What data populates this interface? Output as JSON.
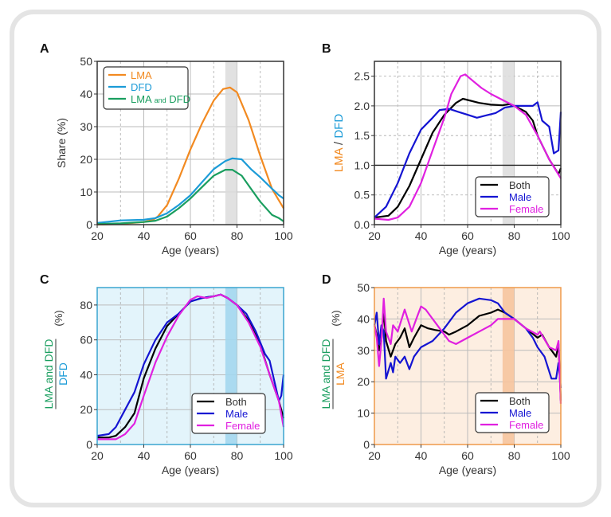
{
  "colors": {
    "lma": "#f28a21",
    "dfd": "#1b9bd7",
    "lma_and_dfd": "#1a9e5f",
    "both": "#000000",
    "male": "#1414d2",
    "female": "#e020e0"
  },
  "chart_data": [
    {
      "panel": "A",
      "type": "line",
      "xlabel": "Age (years)",
      "ylabel": "Share (%)",
      "xlim": [
        20,
        100
      ],
      "ylim": [
        0,
        50
      ],
      "xticks": [
        20,
        40,
        60,
        80,
        100
      ],
      "yticks": [
        0,
        10,
        20,
        30,
        40,
        50
      ],
      "highlight_band": [
        75,
        80
      ],
      "grid": true,
      "legend": "top-left",
      "series": [
        {
          "name": "LMA",
          "color": "#f28a21",
          "x": [
            20,
            30,
            40,
            44,
            46,
            50,
            55,
            60,
            65,
            70,
            74,
            77,
            80,
            85,
            90,
            95,
            100
          ],
          "y": [
            0,
            0.2,
            0.8,
            1.5,
            2.5,
            6,
            14,
            23,
            31,
            38,
            41.5,
            42,
            40.5,
            32,
            21,
            11,
            5
          ]
        },
        {
          "name": "DFD",
          "color": "#1b9bd7",
          "x": [
            20,
            30,
            40,
            45,
            50,
            55,
            60,
            65,
            70,
            75,
            78,
            82,
            86,
            90,
            95,
            98,
            100
          ],
          "y": [
            0.5,
            1.3,
            1.5,
            2,
            3.5,
            6,
            9,
            13,
            17,
            19.5,
            20.3,
            20,
            17,
            14.5,
            11,
            9,
            8
          ]
        },
        {
          "name": "LMA and DFD",
          "color": "#1a9e5f",
          "x": [
            20,
            30,
            40,
            45,
            50,
            55,
            60,
            65,
            70,
            75,
            78,
            82,
            86,
            90,
            95,
            98,
            100
          ],
          "y": [
            0.2,
            0.4,
            0.8,
            1.2,
            2.5,
            5,
            8,
            11.5,
            15,
            16.8,
            16.8,
            15,
            11,
            7,
            3,
            2,
            1
          ]
        }
      ]
    },
    {
      "panel": "B",
      "type": "line",
      "xlabel": "Age (years)",
      "ylabel_parts": [
        "LMA",
        " / ",
        "DFD"
      ],
      "xlim": [
        20,
        100
      ],
      "ylim": [
        0,
        2.75
      ],
      "xticks": [
        20,
        40,
        60,
        80,
        100
      ],
      "yticks": [
        0.0,
        0.5,
        1.0,
        1.5,
        2.0,
        2.5
      ],
      "reference_line": 1.0,
      "highlight_band": [
        75,
        80
      ],
      "grid": true,
      "legend": "bottom-right",
      "series": [
        {
          "name": "Both",
          "color": "#000000",
          "x": [
            20,
            26,
            30,
            35,
            40,
            45,
            50,
            55,
            58,
            60,
            65,
            70,
            75,
            78,
            80,
            85,
            88,
            90,
            95,
            99,
            100
          ],
          "y": [
            0.12,
            0.15,
            0.3,
            0.65,
            1.1,
            1.55,
            1.85,
            2.05,
            2.12,
            2.1,
            2.05,
            2.02,
            2.01,
            2.03,
            2.0,
            1.9,
            1.75,
            1.5,
            1.1,
            0.85,
            0.95
          ]
        },
        {
          "name": "Male",
          "color": "#1414d2",
          "x": [
            20,
            25,
            30,
            35,
            40,
            45,
            48,
            52,
            56,
            60,
            64,
            68,
            72,
            76,
            80,
            85,
            88,
            90,
            92,
            95,
            97,
            99,
            100
          ],
          "y": [
            0.12,
            0.3,
            0.7,
            1.2,
            1.6,
            1.8,
            1.93,
            1.95,
            1.9,
            1.85,
            1.8,
            1.84,
            1.88,
            1.97,
            2.0,
            2.0,
            2.0,
            2.06,
            1.75,
            1.65,
            1.2,
            1.25,
            1.9
          ]
        },
        {
          "name": "Female",
          "color": "#e020e0",
          "x": [
            20,
            26,
            30,
            35,
            40,
            45,
            50,
            53,
            57,
            59,
            62,
            66,
            70,
            75,
            80,
            85,
            90,
            95,
            100
          ],
          "y": [
            0.1,
            0.08,
            0.12,
            0.3,
            0.7,
            1.25,
            1.8,
            2.2,
            2.5,
            2.53,
            2.43,
            2.3,
            2.2,
            2.1,
            2.0,
            1.85,
            1.5,
            1.1,
            0.78
          ]
        }
      ]
    },
    {
      "panel": "C",
      "type": "line",
      "xlabel": "Age (years)",
      "ylabel_numerator": "LMA and DFD",
      "ylabel_denominator": "DFD",
      "ylabel_unit": "(%)",
      "xlim": [
        20,
        100
      ],
      "ylim": [
        0,
        90
      ],
      "xticks": [
        20,
        40,
        60,
        80,
        100
      ],
      "yticks": [
        0,
        20,
        40,
        60,
        80
      ],
      "highlight_band": [
        75,
        80
      ],
      "grid": true,
      "legend": "bottom-right",
      "background": "#e3f4fb",
      "frame_color": "#3aa5d0",
      "band_color": "#a3d7ee",
      "series": [
        {
          "name": "Both",
          "color": "#000000",
          "x": [
            20,
            25,
            28,
            32,
            36,
            40,
            45,
            50,
            55,
            60,
            65,
            70,
            73,
            76,
            80,
            85,
            90,
            94,
            98,
            100
          ],
          "y": [
            4,
            4,
            5,
            10,
            18,
            38,
            55,
            68,
            75,
            82,
            84,
            85,
            86,
            84,
            80,
            71,
            57,
            40,
            25,
            15
          ]
        },
        {
          "name": "Male",
          "color": "#1414d2",
          "x": [
            20,
            25,
            28,
            32,
            36,
            40,
            45,
            50,
            55,
            60,
            65,
            70,
            73,
            76,
            80,
            84,
            88,
            92,
            94,
            98,
            99,
            100
          ],
          "y": [
            5,
            6,
            10,
            20,
            30,
            46,
            60,
            70,
            75,
            82,
            84,
            85,
            86,
            84,
            80,
            75,
            65,
            52,
            48,
            25,
            28,
            40
          ]
        },
        {
          "name": "Female",
          "color": "#e020e0",
          "x": [
            20,
            25,
            28,
            32,
            36,
            40,
            45,
            50,
            55,
            60,
            63,
            67,
            70,
            73,
            76,
            80,
            85,
            90,
            94,
            98,
            100
          ],
          "y": [
            3,
            3,
            3,
            6,
            12,
            28,
            47,
            62,
            74,
            83,
            85,
            84,
            85,
            86,
            84,
            80,
            70,
            56,
            40,
            25,
            10
          ]
        }
      ]
    },
    {
      "panel": "D",
      "type": "line",
      "xlabel": "Age (years)",
      "ylabel_numerator": "LMA and DFD",
      "ylabel_denominator": "LMA",
      "ylabel_unit": "(%)",
      "xlim": [
        20,
        100
      ],
      "ylim": [
        0,
        50
      ],
      "xticks": [
        20,
        40,
        60,
        80,
        100
      ],
      "yticks": [
        0,
        10,
        20,
        30,
        40,
        50
      ],
      "highlight_band": [
        75,
        80
      ],
      "grid": true,
      "legend": "bottom-right",
      "background": "#fdeee1",
      "frame_color": "#ef9a4a",
      "band_color": "#f6c49e",
      "series": [
        {
          "name": "Both",
          "color": "#000000",
          "x": [
            20,
            21,
            22,
            23,
            24,
            25,
            27,
            29,
            31,
            33,
            35,
            37,
            40,
            43,
            46,
            50,
            52,
            55,
            60,
            65,
            70,
            73,
            76,
            80,
            85,
            90,
            92,
            95,
            98,
            99,
            100
          ],
          "y": [
            38,
            35,
            30,
            33,
            43,
            33,
            28,
            32,
            34,
            37,
            31,
            34,
            38,
            37,
            36.5,
            36,
            35,
            36,
            38,
            41,
            42,
            43,
            42,
            40,
            37,
            34,
            35,
            31,
            28,
            32,
            14
          ]
        },
        {
          "name": "Male",
          "color": "#1414d2",
          "x": [
            20,
            21,
            22,
            23,
            24,
            25,
            27,
            28,
            29,
            31,
            33,
            35,
            37,
            40,
            45,
            50,
            55,
            60,
            65,
            70,
            73,
            76,
            80,
            85,
            88,
            90,
            93,
            96,
            98,
            99,
            100
          ],
          "y": [
            38,
            42,
            32,
            38,
            36,
            21,
            26,
            23,
            28,
            26,
            28,
            24,
            28,
            31,
            33,
            37,
            42,
            45,
            46.5,
            46,
            45,
            42,
            40,
            37,
            34,
            31,
            28,
            21,
            21,
            26,
            18
          ]
        },
        {
          "name": "Female",
          "color": "#e020e0",
          "x": [
            20,
            21,
            22,
            23,
            24,
            25,
            27,
            28,
            30,
            33,
            36,
            38,
            40,
            42,
            45,
            48,
            50,
            52,
            55,
            60,
            65,
            70,
            73,
            77,
            80,
            85,
            90,
            91,
            95,
            98,
            99,
            100
          ],
          "y": [
            38,
            34,
            25,
            33,
            46.5,
            36,
            32,
            38,
            36,
            43,
            36,
            40,
            44,
            43,
            40,
            37,
            35,
            33,
            32,
            34,
            36,
            38,
            40,
            40,
            40,
            37,
            35,
            36,
            31,
            30,
            33,
            13
          ]
        }
      ]
    }
  ]
}
